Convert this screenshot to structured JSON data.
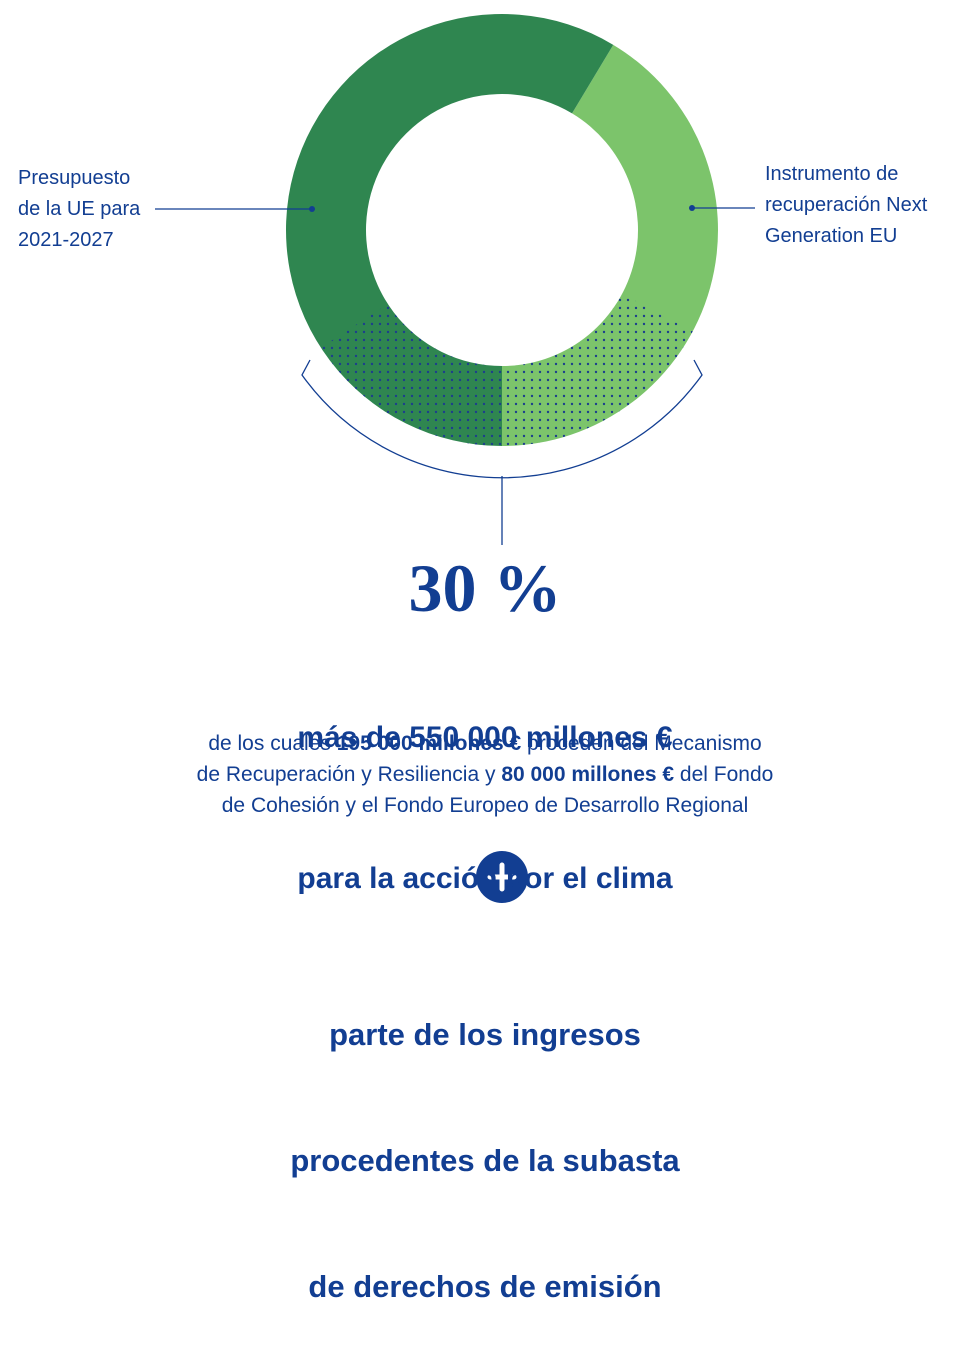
{
  "left_label": [
    "Presupuesto",
    "de la UE para",
    "2021-2027"
  ],
  "right_label": [
    "Instrumento de",
    "recuperación Next",
    "Generation EU"
  ],
  "headline": "30 %",
  "subheadline": [
    "más de 550 000 millones €",
    "para la acción por el clima"
  ],
  "detail": [
    [
      {
        "text": "de los cuales ",
        "bold": false
      },
      {
        "text": "195 000 millones €",
        "bold": true
      },
      {
        "text": " proceden del Mecanismo",
        "bold": false
      }
    ],
    [
      {
        "text": "de Recuperación y Resiliencia y ",
        "bold": false
      },
      {
        "text": "80 000 millones €",
        "bold": true
      },
      {
        "text": " del Fondo",
        "bold": false
      }
    ],
    [
      {
        "text": "de Cohesión y el Fondo Europeo de Desarrollo Regional",
        "bold": false
      }
    ]
  ],
  "footer": [
    "parte de los ingresos",
    "procedentes de la subasta",
    "de derechos de emisión"
  ]
}
